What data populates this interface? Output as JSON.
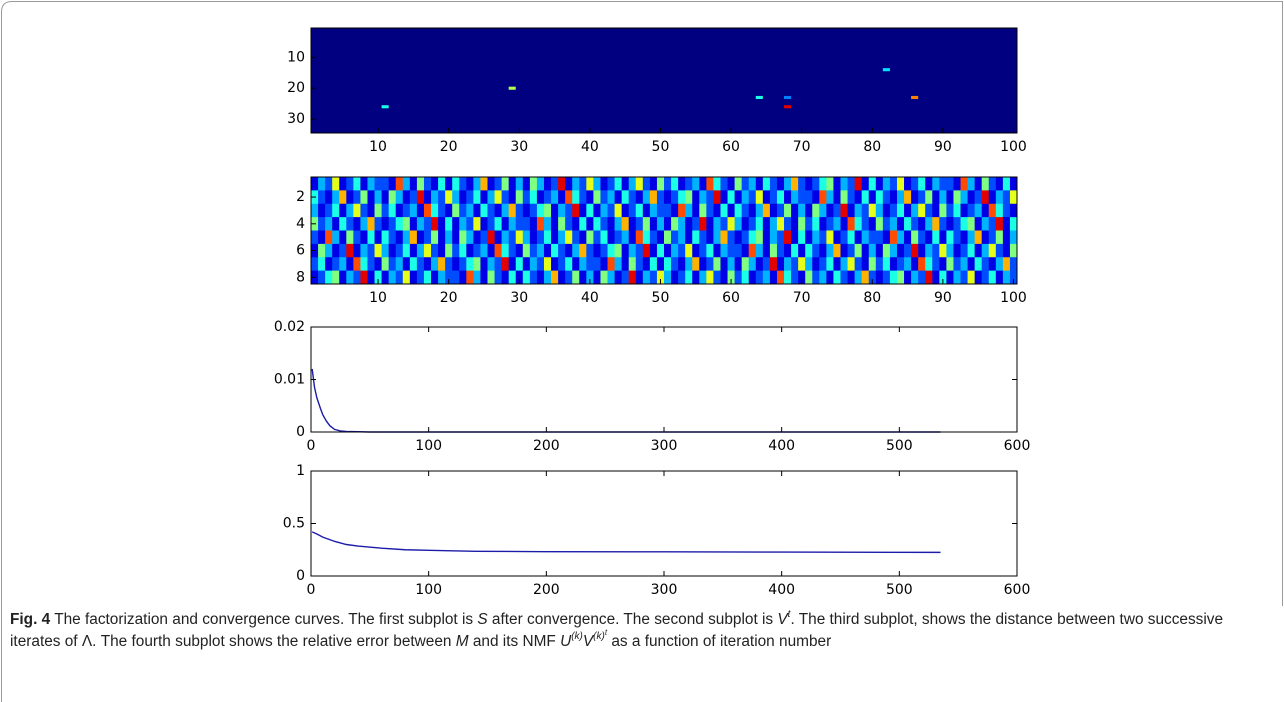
{
  "chart_data": [
    {
      "type": "heatmap",
      "colormap": "jet",
      "clim": [
        0,
        1
      ],
      "xlim": [
        0.5,
        100.5
      ],
      "ylim": [
        0.5,
        34.5
      ],
      "xticks": [
        10,
        20,
        30,
        40,
        50,
        60,
        70,
        80,
        90,
        100
      ],
      "yticks": [
        10,
        20,
        30
      ],
      "x": [
        11,
        29,
        64,
        68,
        68,
        82,
        86
      ],
      "y": [
        26,
        20,
        23,
        23,
        26,
        14,
        23
      ],
      "values": [
        0.4,
        0.55,
        0.4,
        0.25,
        0.9,
        0.35,
        0.75
      ]
    },
    {
      "type": "heatmap",
      "colormap": "jet",
      "clim": [
        0,
        1
      ],
      "xlim": [
        0.5,
        100.5
      ],
      "ylim": [
        0.5,
        8.5
      ],
      "xticks": [
        10,
        20,
        30,
        40,
        50,
        60,
        70,
        80,
        90,
        100
      ],
      "yticks": [
        2,
        4,
        6,
        8
      ],
      "values": [
        [
          0.1,
          0.3,
          0.2,
          0.6,
          0.1,
          0.2,
          0.4,
          0.1,
          0.3,
          0.2,
          0.2,
          0.1,
          0.8,
          0.3,
          0.1,
          0.5,
          0.2,
          0.1,
          0.4,
          0.1,
          0.4,
          0.2,
          0.1,
          0.3,
          0.7,
          0.1,
          0.2,
          0.5,
          0.1,
          0.3,
          0.1,
          0.5,
          0.3,
          0.1,
          0.2,
          0.9,
          0.1,
          0.3,
          0.2,
          0.6,
          0.3,
          0.1,
          0.2,
          0.4,
          0.1,
          0.3,
          0.6,
          0.2,
          0.1,
          0.5,
          0.2,
          0.4,
          0.1,
          0.2,
          0.3,
          0.1,
          0.8,
          0.4,
          0.2,
          0.1,
          0.5,
          0.2,
          0.3,
          0.1,
          0.4,
          0.2,
          0.1,
          0.3,
          0.7,
          0.2,
          0.1,
          0.2,
          0.4,
          0.5,
          0.1,
          0.3,
          0.2,
          0.9,
          0.1,
          0.4,
          0.1,
          0.3,
          0.2,
          0.6,
          0.1,
          0.2,
          0.4,
          0.1,
          0.3,
          0.2,
          0.2,
          0.1,
          0.8,
          0.3,
          0.1,
          0.5,
          0.2,
          0.1,
          0.4,
          0.1
        ],
        [
          0.4,
          0.2,
          0.1,
          0.3,
          0.7,
          0.1,
          0.2,
          0.5,
          0.1,
          0.3,
          0.1,
          0.5,
          0.3,
          0.1,
          0.2,
          0.9,
          0.1,
          0.3,
          0.2,
          0.6,
          0.3,
          0.1,
          0.2,
          0.4,
          0.1,
          0.3,
          0.6,
          0.2,
          0.1,
          0.5,
          0.2,
          0.4,
          0.1,
          0.2,
          0.3,
          0.1,
          0.8,
          0.4,
          0.2,
          0.1,
          0.5,
          0.2,
          0.3,
          0.1,
          0.4,
          0.2,
          0.1,
          0.3,
          0.7,
          0.2,
          0.1,
          0.2,
          0.4,
          0.5,
          0.1,
          0.3,
          0.2,
          0.9,
          0.1,
          0.4,
          0.1,
          0.3,
          0.2,
          0.6,
          0.1,
          0.2,
          0.4,
          0.1,
          0.3,
          0.2,
          0.2,
          0.1,
          0.8,
          0.3,
          0.1,
          0.5,
          0.2,
          0.1,
          0.4,
          0.1,
          0.4,
          0.2,
          0.1,
          0.3,
          0.7,
          0.1,
          0.2,
          0.5,
          0.1,
          0.3,
          0.1,
          0.5,
          0.3,
          0.1,
          0.2,
          0.9,
          0.1,
          0.3,
          0.2,
          0.6
        ],
        [
          0.3,
          0.1,
          0.2,
          0.4,
          0.1,
          0.3,
          0.6,
          0.2,
          0.1,
          0.5,
          0.2,
          0.4,
          0.1,
          0.2,
          0.3,
          0.1,
          0.8,
          0.4,
          0.2,
          0.1,
          0.5,
          0.2,
          0.3,
          0.1,
          0.4,
          0.2,
          0.1,
          0.3,
          0.7,
          0.2,
          0.1,
          0.2,
          0.4,
          0.5,
          0.1,
          0.3,
          0.2,
          0.9,
          0.1,
          0.4,
          0.1,
          0.3,
          0.2,
          0.6,
          0.1,
          0.2,
          0.4,
          0.1,
          0.3,
          0.2,
          0.2,
          0.1,
          0.8,
          0.3,
          0.1,
          0.5,
          0.2,
          0.1,
          0.4,
          0.1,
          0.4,
          0.2,
          0.1,
          0.3,
          0.7,
          0.1,
          0.2,
          0.5,
          0.1,
          0.3,
          0.1,
          0.5,
          0.3,
          0.1,
          0.2,
          0.9,
          0.1,
          0.3,
          0.2,
          0.6,
          0.3,
          0.1,
          0.2,
          0.4,
          0.1,
          0.3,
          0.6,
          0.2,
          0.1,
          0.5,
          0.2,
          0.4,
          0.1,
          0.2,
          0.3,
          0.1,
          0.8,
          0.4,
          0.2,
          0.1
        ],
        [
          0.5,
          0.2,
          0.3,
          0.1,
          0.4,
          0.2,
          0.1,
          0.3,
          0.7,
          0.2,
          0.1,
          0.2,
          0.4,
          0.5,
          0.1,
          0.3,
          0.2,
          0.9,
          0.1,
          0.4,
          0.1,
          0.3,
          0.2,
          0.6,
          0.1,
          0.2,
          0.4,
          0.1,
          0.3,
          0.2,
          0.2,
          0.1,
          0.8,
          0.3,
          0.1,
          0.5,
          0.2,
          0.1,
          0.4,
          0.1,
          0.4,
          0.2,
          0.1,
          0.3,
          0.7,
          0.1,
          0.2,
          0.5,
          0.1,
          0.3,
          0.1,
          0.5,
          0.3,
          0.1,
          0.2,
          0.9,
          0.1,
          0.3,
          0.2,
          0.6,
          0.3,
          0.1,
          0.2,
          0.4,
          0.1,
          0.3,
          0.6,
          0.2,
          0.1,
          0.5,
          0.2,
          0.4,
          0.1,
          0.2,
          0.3,
          0.1,
          0.8,
          0.4,
          0.2,
          0.1,
          0.5,
          0.2,
          0.3,
          0.1,
          0.4,
          0.2,
          0.1,
          0.3,
          0.7,
          0.2,
          0.1,
          0.2,
          0.4,
          0.5,
          0.1,
          0.3,
          0.2,
          0.9,
          0.1,
          0.4
        ],
        [
          0.2,
          0.1,
          0.8,
          0.3,
          0.1,
          0.5,
          0.2,
          0.1,
          0.4,
          0.1,
          0.4,
          0.2,
          0.1,
          0.3,
          0.7,
          0.1,
          0.2,
          0.5,
          0.1,
          0.3,
          0.1,
          0.5,
          0.3,
          0.1,
          0.2,
          0.9,
          0.1,
          0.3,
          0.2,
          0.6,
          0.3,
          0.1,
          0.2,
          0.4,
          0.1,
          0.3,
          0.6,
          0.2,
          0.1,
          0.5,
          0.2,
          0.4,
          0.1,
          0.2,
          0.3,
          0.1,
          0.8,
          0.4,
          0.2,
          0.1,
          0.5,
          0.2,
          0.3,
          0.1,
          0.4,
          0.2,
          0.1,
          0.3,
          0.7,
          0.2,
          0.1,
          0.2,
          0.4,
          0.5,
          0.1,
          0.3,
          0.2,
          0.9,
          0.1,
          0.4,
          0.1,
          0.3,
          0.2,
          0.6,
          0.1,
          0.2,
          0.4,
          0.1,
          0.3,
          0.2,
          0.2,
          0.1,
          0.8,
          0.3,
          0.1,
          0.5,
          0.2,
          0.1,
          0.4,
          0.1,
          0.4,
          0.2,
          0.1,
          0.3,
          0.7,
          0.1,
          0.2,
          0.5,
          0.1,
          0.3
        ],
        [
          0.1,
          0.5,
          0.3,
          0.1,
          0.2,
          0.9,
          0.1,
          0.3,
          0.2,
          0.6,
          0.3,
          0.1,
          0.2,
          0.4,
          0.1,
          0.3,
          0.6,
          0.2,
          0.1,
          0.5,
          0.2,
          0.4,
          0.1,
          0.2,
          0.3,
          0.1,
          0.8,
          0.4,
          0.2,
          0.1,
          0.5,
          0.2,
          0.3,
          0.1,
          0.4,
          0.2,
          0.1,
          0.3,
          0.7,
          0.2,
          0.1,
          0.2,
          0.4,
          0.5,
          0.1,
          0.3,
          0.2,
          0.9,
          0.1,
          0.4,
          0.1,
          0.3,
          0.2,
          0.6,
          0.1,
          0.2,
          0.4,
          0.1,
          0.3,
          0.2,
          0.2,
          0.1,
          0.8,
          0.3,
          0.1,
          0.5,
          0.2,
          0.1,
          0.4,
          0.1,
          0.4,
          0.2,
          0.1,
          0.3,
          0.7,
          0.1,
          0.2,
          0.5,
          0.1,
          0.3,
          0.1,
          0.5,
          0.3,
          0.1,
          0.2,
          0.9,
          0.1,
          0.3,
          0.2,
          0.6,
          0.3,
          0.1,
          0.2,
          0.4,
          0.1,
          0.3,
          0.6,
          0.2,
          0.1,
          0.5
        ],
        [
          0.2,
          0.4,
          0.1,
          0.2,
          0.3,
          0.1,
          0.8,
          0.4,
          0.2,
          0.1,
          0.5,
          0.2,
          0.3,
          0.1,
          0.4,
          0.2,
          0.1,
          0.3,
          0.7,
          0.2,
          0.1,
          0.2,
          0.4,
          0.5,
          0.1,
          0.3,
          0.2,
          0.9,
          0.1,
          0.4,
          0.1,
          0.3,
          0.2,
          0.6,
          0.1,
          0.2,
          0.4,
          0.1,
          0.3,
          0.2,
          0.2,
          0.1,
          0.8,
          0.3,
          0.1,
          0.5,
          0.2,
          0.1,
          0.4,
          0.1,
          0.4,
          0.2,
          0.1,
          0.3,
          0.7,
          0.1,
          0.2,
          0.5,
          0.1,
          0.3,
          0.1,
          0.5,
          0.3,
          0.1,
          0.2,
          0.9,
          0.1,
          0.3,
          0.2,
          0.6,
          0.3,
          0.1,
          0.2,
          0.4,
          0.1,
          0.3,
          0.6,
          0.2,
          0.1,
          0.5,
          0.2,
          0.4,
          0.1,
          0.2,
          0.3,
          0.1,
          0.8,
          0.4,
          0.2,
          0.1,
          0.5,
          0.2,
          0.3,
          0.1,
          0.4,
          0.2,
          0.1,
          0.3,
          0.7,
          0.2
        ],
        [
          0.1,
          0.2,
          0.4,
          0.5,
          0.1,
          0.3,
          0.2,
          0.9,
          0.1,
          0.4,
          0.1,
          0.3,
          0.2,
          0.6,
          0.1,
          0.2,
          0.4,
          0.1,
          0.3,
          0.2,
          0.2,
          0.1,
          0.8,
          0.3,
          0.1,
          0.5,
          0.2,
          0.1,
          0.4,
          0.1,
          0.4,
          0.2,
          0.1,
          0.3,
          0.7,
          0.1,
          0.2,
          0.5,
          0.1,
          0.3,
          0.1,
          0.5,
          0.3,
          0.1,
          0.2,
          0.9,
          0.1,
          0.3,
          0.2,
          0.6,
          0.3,
          0.1,
          0.2,
          0.4,
          0.1,
          0.3,
          0.6,
          0.2,
          0.1,
          0.5,
          0.2,
          0.4,
          0.1,
          0.2,
          0.3,
          0.1,
          0.8,
          0.4,
          0.2,
          0.1,
          0.5,
          0.2,
          0.3,
          0.1,
          0.4,
          0.2,
          0.1,
          0.3,
          0.7,
          0.2,
          0.1,
          0.2,
          0.4,
          0.5,
          0.1,
          0.3,
          0.2,
          0.9,
          0.1,
          0.4,
          0.1,
          0.3,
          0.2,
          0.6,
          0.1,
          0.2,
          0.4,
          0.1,
          0.3,
          0.2
        ]
      ]
    },
    {
      "type": "line",
      "color": "#1c1ca8",
      "xlim": [
        0,
        600
      ],
      "ylim": [
        0,
        0.02
      ],
      "xticks": [
        0,
        100,
        200,
        300,
        400,
        500,
        600
      ],
      "yticks": [
        0,
        0.01,
        0.02
      ],
      "x": [
        1,
        3,
        5,
        8,
        10,
        13,
        16,
        20,
        25,
        30,
        50,
        100,
        200,
        300,
        400,
        535
      ],
      "values": [
        0.012,
        0.0085,
        0.0065,
        0.0045,
        0.0033,
        0.0021,
        0.0012,
        0.0005,
        0.0002,
        0.0001,
        0,
        0,
        0,
        0,
        0,
        0
      ]
    },
    {
      "type": "line",
      "color": "#1c1ca8",
      "xlim": [
        0,
        600
      ],
      "ylim": [
        0,
        1
      ],
      "xticks": [
        0,
        100,
        200,
        300,
        400,
        500,
        600
      ],
      "yticks": [
        0,
        0.5,
        1
      ],
      "x": [
        1,
        5,
        10,
        20,
        30,
        40,
        60,
        80,
        100,
        140,
        200,
        300,
        400,
        535
      ],
      "values": [
        0.42,
        0.4,
        0.37,
        0.33,
        0.3,
        0.285,
        0.265,
        0.25,
        0.245,
        0.235,
        0.232,
        0.23,
        0.228,
        0.225
      ]
    }
  ],
  "caption": {
    "label": "Fig. 4",
    "parts": [
      " The factorization and convergence curves. The first subplot is ",
      "S",
      " after convergence. The second subplot is ",
      "V",
      "t",
      ". The third subplot, shows the distance between two successive iterates of ",
      "Λ",
      ". The fourth subplot shows the relative error between ",
      "M",
      " and its NMF ",
      "U",
      "(k)",
      "V",
      "(k)",
      "t",
      " as a function of iteration number"
    ]
  }
}
